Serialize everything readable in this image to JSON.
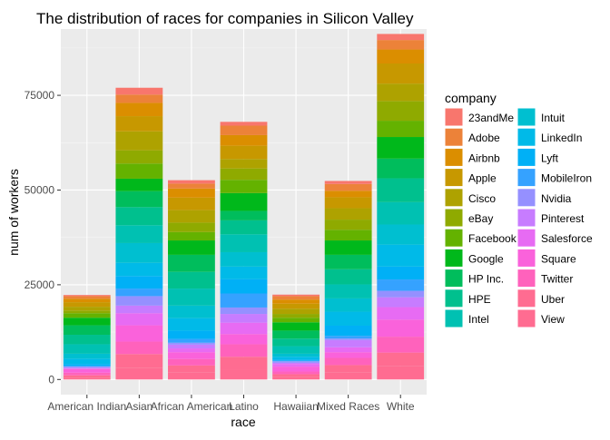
{
  "chart_data": {
    "type": "bar",
    "stacked": true,
    "title": "The distribution of races for companies in Silicon Valley",
    "xlabel": "race",
    "ylabel": "num of workers",
    "legend_title": "company",
    "legend_position": "right",
    "grid": true,
    "ylim": [
      0,
      90000
    ],
    "yticks": [
      0,
      25000,
      50000,
      75000
    ],
    "categories": [
      "American Indian",
      "Asian",
      "African American",
      "Latino",
      "Hawaiian",
      "Mixed Races",
      "White"
    ],
    "series": [
      {
        "name": "23andMe",
        "color": "#F8766D",
        "values": [
          300,
          1800,
          900,
          1000,
          400,
          800,
          1600
        ]
      },
      {
        "name": "Adobe",
        "color": "#EC8239",
        "values": [
          700,
          2200,
          1300,
          2500,
          900,
          1800,
          2500
        ]
      },
      {
        "name": "Airbnb",
        "color": "#DB8E00",
        "values": [
          900,
          3500,
          2400,
          2800,
          1100,
          1700,
          3700
        ]
      },
      {
        "name": "Apple",
        "color": "#C79800",
        "values": [
          1200,
          4000,
          3300,
          3500,
          1300,
          2900,
          5300
        ]
      },
      {
        "name": "Cisco",
        "color": "#AEA200",
        "values": [
          1000,
          5000,
          3300,
          2500,
          1400,
          3000,
          4600
        ]
      },
      {
        "name": "eBay",
        "color": "#8FAA00",
        "values": [
          700,
          3500,
          2500,
          3000,
          1000,
          2700,
          5200
        ]
      },
      {
        "name": "Facebook",
        "color": "#64B200",
        "values": [
          1200,
          4000,
          2200,
          3500,
          1200,
          2800,
          4300
        ]
      },
      {
        "name": "Google",
        "color": "#00B81B",
        "values": [
          2000,
          3300,
          3800,
          4700,
          2200,
          3800,
          5700
        ]
      },
      {
        "name": "HP Inc.",
        "color": "#00BD5C",
        "values": [
          2500,
          4200,
          4500,
          2500,
          2100,
          3800,
          5200
        ]
      },
      {
        "name": "HPE",
        "color": "#00C08E",
        "values": [
          2500,
          4800,
          4400,
          3700,
          2000,
          4000,
          6300
        ]
      },
      {
        "name": "Intel",
        "color": "#00C1B2",
        "values": [
          2500,
          4700,
          4500,
          4700,
          2000,
          3700,
          5900
        ]
      },
      {
        "name": "Intuit",
        "color": "#00BFD0",
        "values": [
          1300,
          5200,
          3300,
          3800,
          800,
          3500,
          5300
        ]
      },
      {
        "name": "LinkedIn",
        "color": "#00BAE8",
        "values": [
          1400,
          3500,
          3300,
          3300,
          700,
          3700,
          5800
        ]
      },
      {
        "name": "Lyft",
        "color": "#00B0F6",
        "values": [
          500,
          3300,
          2200,
          3800,
          300,
          2700,
          3400
        ]
      },
      {
        "name": "MobileIron",
        "color": "#35A2FF",
        "values": [
          200,
          2000,
          1000,
          3700,
          200,
          700,
          3000
        ]
      },
      {
        "name": "Nvidia",
        "color": "#9590FF",
        "values": [
          300,
          2500,
          500,
          1700,
          400,
          400,
          1700
        ]
      },
      {
        "name": "Pinterest",
        "color": "#C77CFF",
        "values": [
          200,
          2000,
          1000,
          2300,
          300,
          1900,
          2600
        ]
      },
      {
        "name": "Salesforce",
        "color": "#E76BF3",
        "values": [
          100,
          3200,
          1000,
          3000,
          700,
          1300,
          3300
        ]
      },
      {
        "name": "Square",
        "color": "#FA62DB",
        "values": [
          1000,
          4300,
          1800,
          2700,
          1300,
          1500,
          4500
        ]
      },
      {
        "name": "Twitter",
        "color": "#FF62BC",
        "values": [
          700,
          3300,
          1700,
          3300,
          700,
          1900,
          4200
        ]
      },
      {
        "name": "Uber",
        "color": "#FF6C91",
        "values": [
          600,
          3700,
          1900,
          3300,
          700,
          2000,
          3500
        ]
      },
      {
        "name": "View",
        "color": "#FF6C91",
        "values": [
          500,
          3000,
          1800,
          2700,
          700,
          1800,
          3600
        ]
      }
    ]
  }
}
